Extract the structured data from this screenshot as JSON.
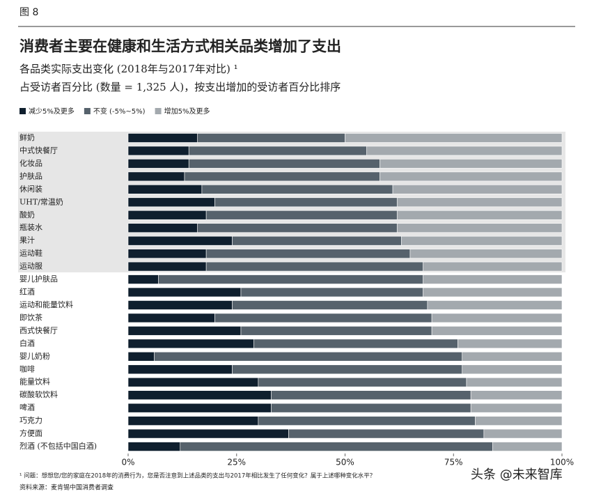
{
  "chart_data": {
    "type": "stacked_barh",
    "figure_label": "图 8",
    "title": "消费者主要在健康和生活方式相关品类增加了支出",
    "subtitle": [
      "各品类实际支出变化 (2018年与2017年对比) ¹",
      "占受访者百分比 (数量 = 1,325 人)，按支出增加的受访者百分比排序"
    ],
    "categories": [
      "鲜奶",
      "中式快餐厅",
      "化妆品",
      "护肤品",
      "休闲装",
      "UHT/常温奶",
      "酸奶",
      "瓶装水",
      "果汁",
      "运动鞋",
      "运动服",
      "婴儿护肤品",
      "红酒",
      "运动和能量饮料",
      "即饮茶",
      "西式快餐厅",
      "白酒",
      "婴儿奶粉",
      "咖啡",
      "能量饮料",
      "碳酸软饮料",
      "啤酒",
      "巧克力",
      "方便面",
      "烈酒 (不包括中国白酒)"
    ],
    "series": [
      {
        "name": "减少5%及更多",
        "color": "#0f1f2e",
        "values": [
          16,
          14,
          14,
          13,
          17,
          20,
          18,
          16,
          24,
          18,
          18,
          7,
          26,
          24,
          20,
          26,
          29,
          6,
          24,
          30,
          33,
          33,
          30,
          37,
          12
        ]
      },
      {
        "name": "不变 (-5%~5%)",
        "color": "#56626c",
        "values": [
          34,
          41,
          44,
          45,
          44,
          42,
          44,
          46,
          39,
          47,
          50,
          61,
          42,
          45,
          50,
          44,
          47,
          71,
          53,
          48,
          46,
          46,
          50,
          45,
          72
        ]
      },
      {
        "name": "增加5%及更多",
        "color": "#a3a9ae",
        "values": [
          50,
          45,
          42,
          42,
          39,
          38,
          38,
          38,
          37,
          35,
          32,
          32,
          32,
          31,
          30,
          30,
          24,
          23,
          23,
          22,
          21,
          21,
          20,
          18,
          16
        ]
      }
    ],
    "xlim": [
      0,
      100
    ],
    "xticks": [
      {
        "value": 0,
        "label": "0%"
      },
      {
        "value": 25,
        "label": "25%"
      },
      {
        "value": 50,
        "label": "50%"
      },
      {
        "value": 75,
        "label": "75%"
      },
      {
        "value": 100,
        "label": "100%"
      }
    ],
    "footnote": "¹ 问题：想想您/您的家庭在2018年的消费行为，您是否注意到上述品类的支出与2017年相比发生了任何变化？属于上述哪种变化水平？",
    "source": "资料来源：麦肯锡中国消费者调查",
    "watermark": "头条 @未来智库"
  }
}
